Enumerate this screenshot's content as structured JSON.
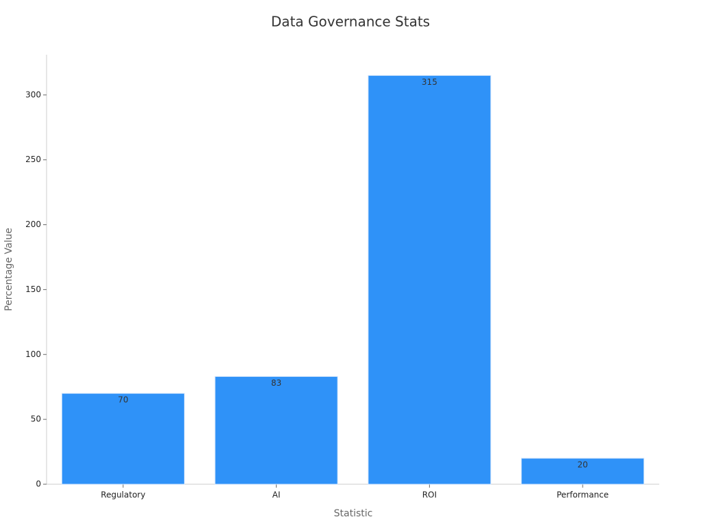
{
  "chart_data": {
    "type": "bar",
    "title": "Data Governance Stats",
    "x_label": "Statistic",
    "y_label": "Percentage Value",
    "categories": [
      "Regulatory",
      "AI",
      "ROI",
      "Performance"
    ],
    "values": [
      70,
      83,
      315,
      20
    ],
    "color": "#2f92f8",
    "ylim": [
      0,
      331
    ],
    "yticks": [
      0,
      50,
      100,
      150,
      200,
      250,
      300
    ],
    "grid": false
  }
}
